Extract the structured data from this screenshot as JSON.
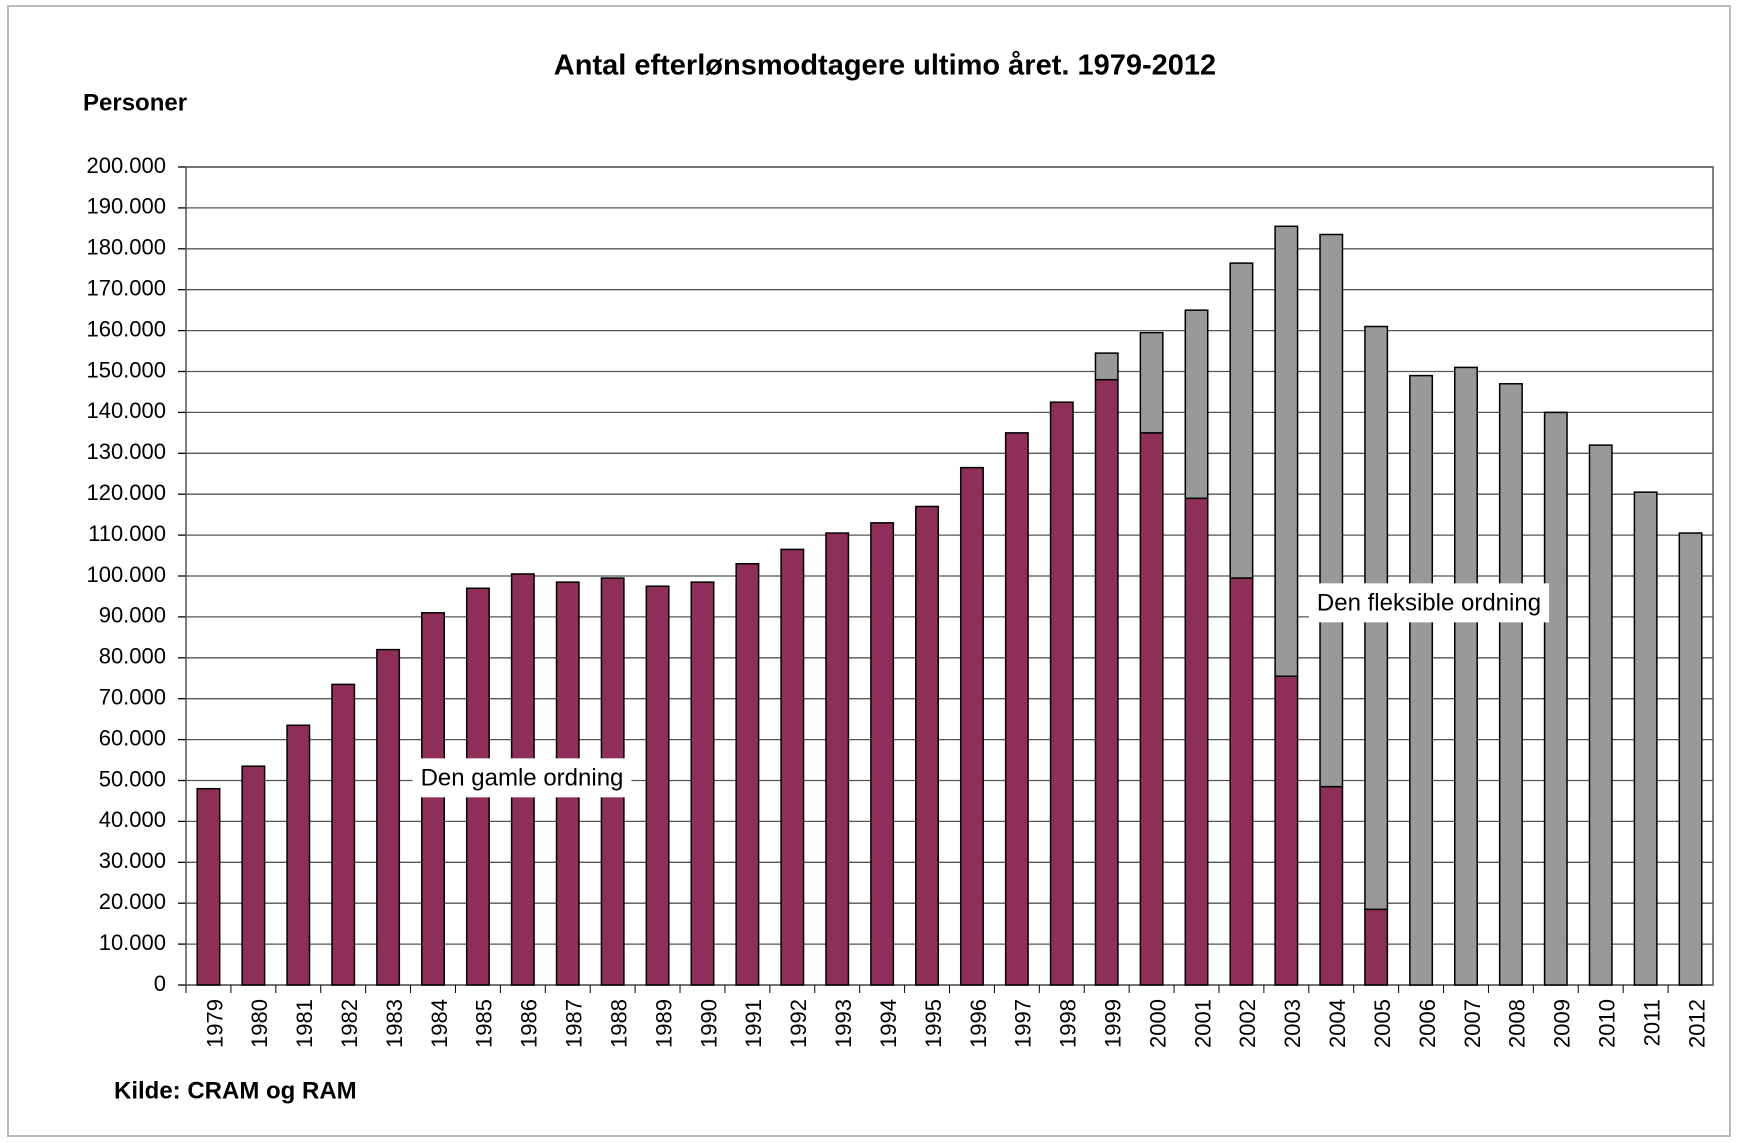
{
  "chart_data": {
    "type": "stacked_bar",
    "title": "Antal efterlønsmodtagere ultimo året. 1979-2012",
    "y_axis_label": "Personer",
    "source": "Kilde: CRAM og RAM",
    "categories": [
      "1979",
      "1980",
      "1981",
      "1982",
      "1983",
      "1984",
      "1985",
      "1986",
      "1987",
      "1988",
      "1989",
      "1990",
      "1991",
      "1992",
      "1993",
      "1994",
      "1995",
      "1996",
      "1997",
      "1998",
      "1999",
      "2000",
      "2001",
      "2002",
      "2003",
      "2004",
      "2005",
      "2006",
      "2007",
      "2008",
      "2009",
      "2010",
      "2011",
      "2012"
    ],
    "series": [
      {
        "name": "Den gamle ordning",
        "color": "#8e2f5a",
        "values": [
          48000,
          53500,
          63500,
          73500,
          82000,
          91000,
          97000,
          100500,
          98500,
          99500,
          97500,
          98500,
          103000,
          106500,
          110500,
          113000,
          117000,
          126500,
          135000,
          142500,
          148000,
          135000,
          119000,
          99500,
          75500,
          48500,
          18500,
          0,
          0,
          0,
          0,
          0,
          0,
          0
        ]
      },
      {
        "name": "Den fleksible ordning",
        "color": "#999999",
        "values": [
          0,
          0,
          0,
          0,
          0,
          0,
          0,
          0,
          0,
          0,
          0,
          0,
          0,
          0,
          0,
          0,
          0,
          0,
          0,
          0,
          6500,
          24500,
          46000,
          77000,
          110000,
          135000,
          142500,
          149000,
          151000,
          147000,
          140000,
          132000,
          120500,
          110500
        ]
      }
    ],
    "ylim": [
      0,
      200000
    ],
    "yticks": [
      0,
      {
        "value": 10000,
        "label": "10.000"
      },
      {
        "value": 20000,
        "label": "20.000"
      },
      {
        "value": 30000,
        "label": "30.000"
      },
      {
        "value": 40000,
        "label": "40.000"
      },
      {
        "value": 50000,
        "label": "50.000"
      },
      {
        "value": 60000,
        "label": "60.000"
      },
      {
        "value": 70000,
        "label": "70.000"
      },
      {
        "value": 80000,
        "label": "80.000"
      },
      {
        "value": 90000,
        "label": "90.000"
      },
      {
        "value": 100000,
        "label": "100.000"
      },
      {
        "value": 110000,
        "label": "110.000"
      },
      {
        "value": 120000,
        "label": "120.000"
      },
      {
        "value": 130000,
        "label": "130.000"
      },
      {
        "value": 140000,
        "label": "140.000"
      },
      {
        "value": 150000,
        "label": "150.000"
      },
      {
        "value": 160000,
        "label": "160.000"
      },
      {
        "value": 170000,
        "label": "170.000"
      },
      {
        "value": 180000,
        "label": "180.000"
      },
      {
        "value": 190000,
        "label": "190.000"
      },
      {
        "value": 200000,
        "label": "200.000"
      }
    ],
    "grid": true
  }
}
